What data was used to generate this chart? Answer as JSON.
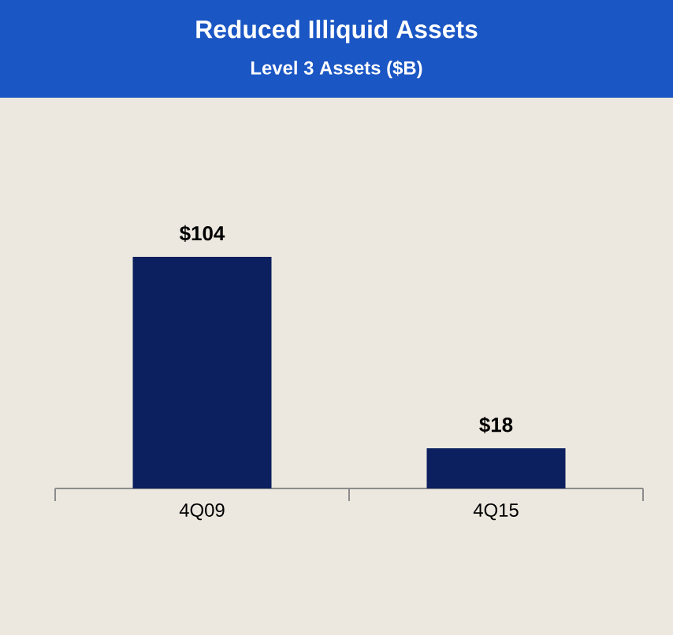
{
  "chart_data": {
    "type": "bar",
    "title": "Reduced Illiquid Assets",
    "subtitle": "Level 3 Assets ($B)",
    "categories": [
      "4Q09",
      "4Q15"
    ],
    "values": [
      104,
      18
    ],
    "value_labels": [
      "$104",
      "$18"
    ],
    "color": "#0c1f5e"
  }
}
